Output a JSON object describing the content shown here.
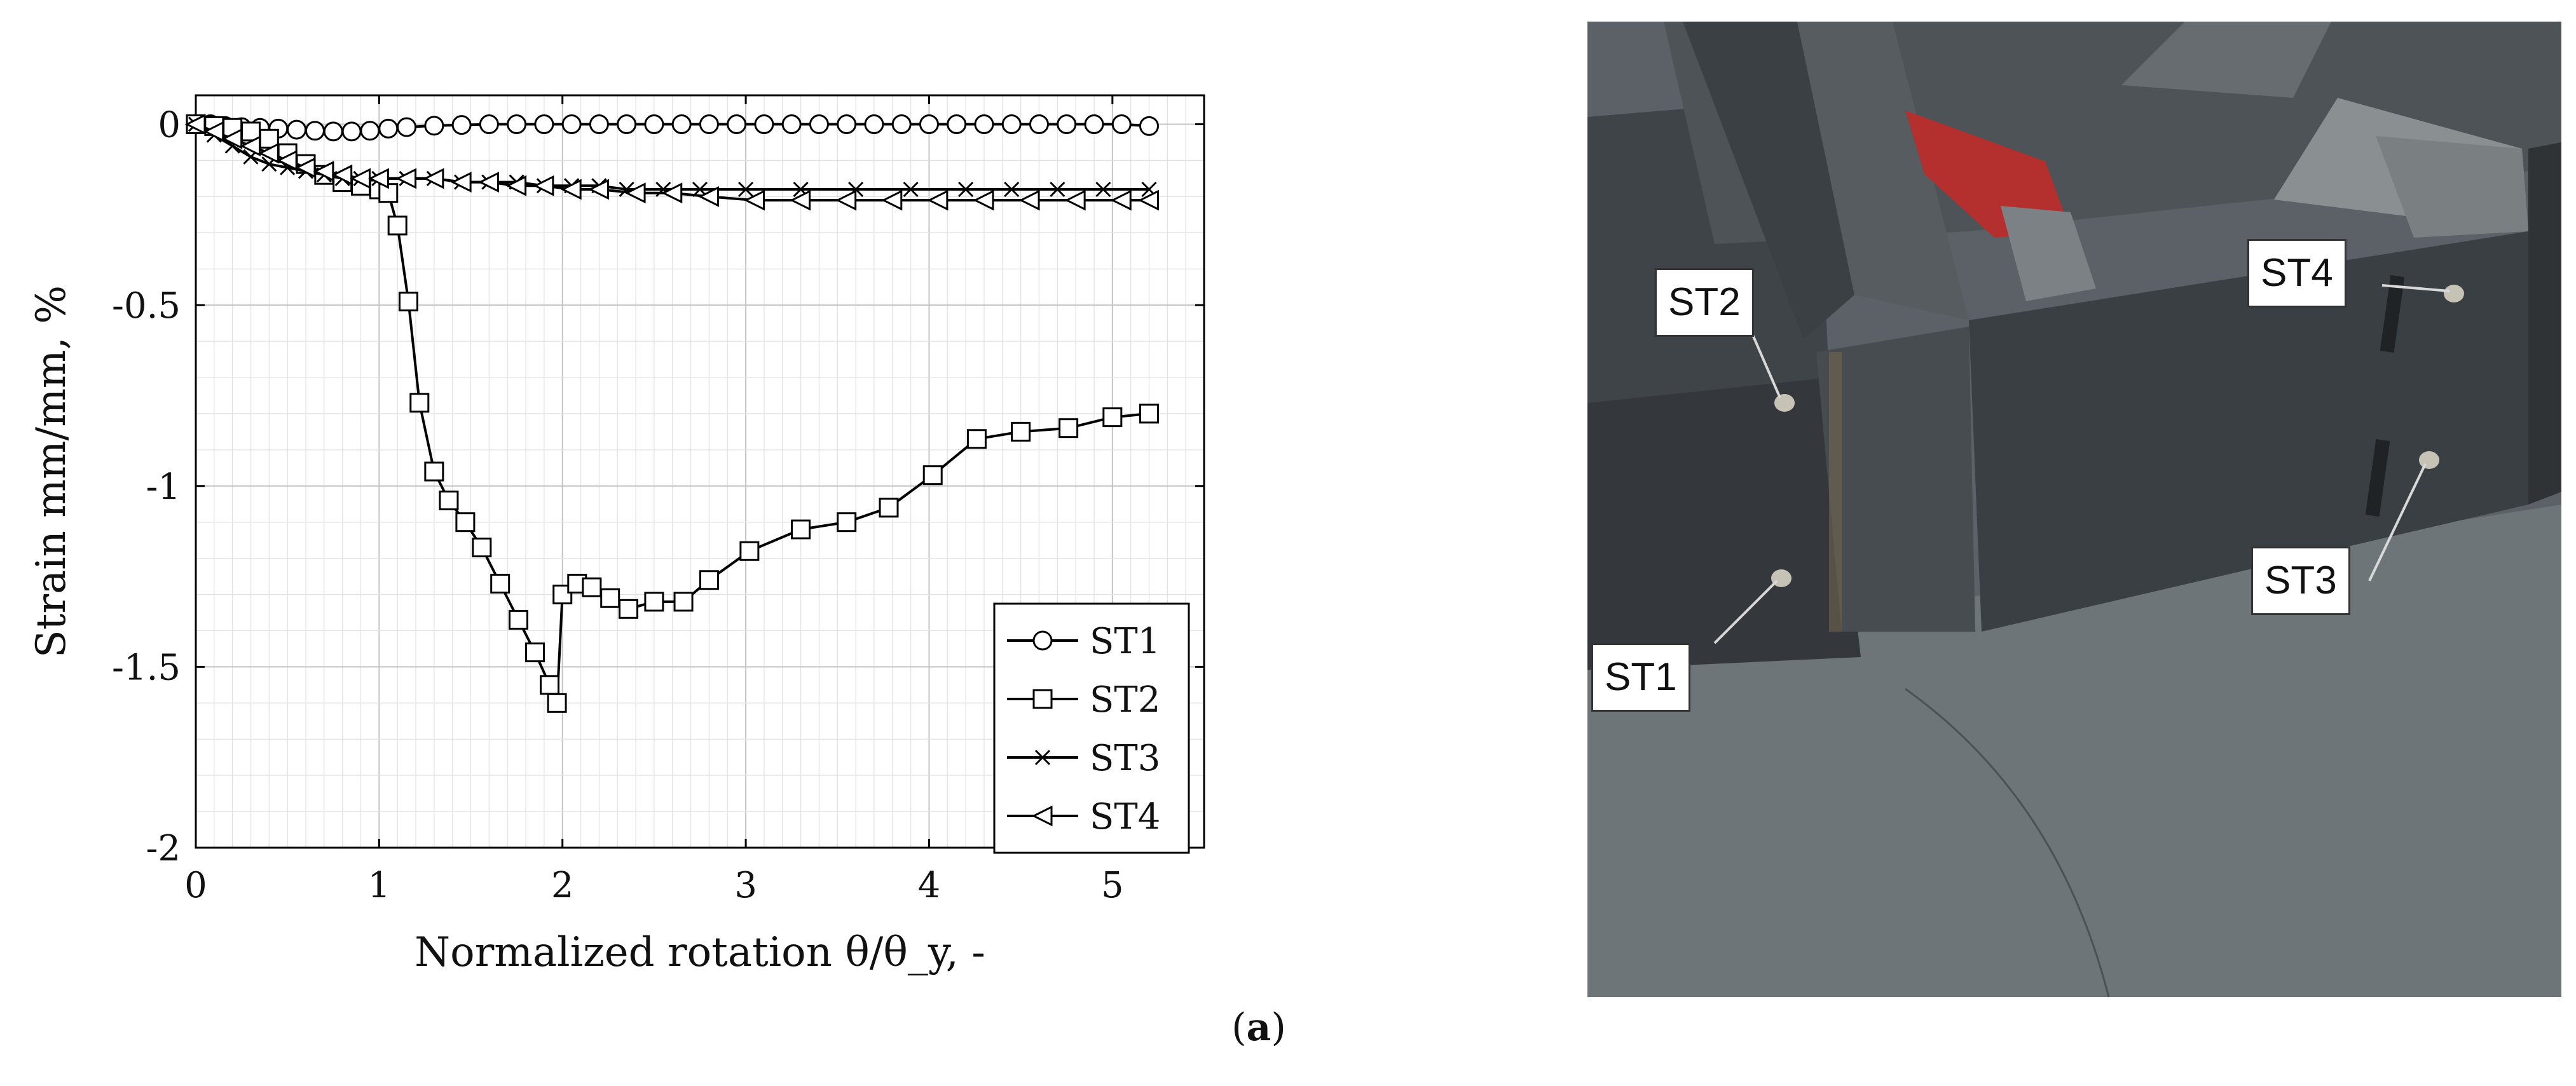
{
  "chart_data": {
    "type": "line",
    "xlabel": "Normalized rotation θ/θ_y, -",
    "ylabel": "Strain mm/mm, %",
    "xlim": [
      0,
      5.5
    ],
    "ylim": [
      -2,
      0.08
    ],
    "x_ticks": [
      "0",
      "1",
      "2",
      "3",
      "4",
      "5"
    ],
    "y_ticks": [
      "0",
      "-0.5",
      "-1",
      "-1.5",
      "-2"
    ],
    "grid": "major-and-minor",
    "legend_position": "bottom-right",
    "series": [
      {
        "name": "ST1",
        "marker": "circle",
        "points": [
          [
            0,
            0
          ],
          [
            0.08,
            0
          ],
          [
            0.16,
            -0.005
          ],
          [
            0.25,
            -0.008
          ],
          [
            0.35,
            -0.01
          ],
          [
            0.45,
            -0.012
          ],
          [
            0.55,
            -0.015
          ],
          [
            0.65,
            -0.018
          ],
          [
            0.75,
            -0.02
          ],
          [
            0.85,
            -0.02
          ],
          [
            0.95,
            -0.018
          ],
          [
            1.05,
            -0.012
          ],
          [
            1.15,
            -0.008
          ],
          [
            1.3,
            -0.004
          ],
          [
            1.45,
            -0.002
          ],
          [
            1.6,
            0
          ],
          [
            1.75,
            0
          ],
          [
            1.9,
            0
          ],
          [
            2.05,
            0
          ],
          [
            2.2,
            0
          ],
          [
            2.35,
            0
          ],
          [
            2.5,
            0
          ],
          [
            2.65,
            0
          ],
          [
            2.8,
            0
          ],
          [
            2.95,
            0
          ],
          [
            3.1,
            0
          ],
          [
            3.25,
            0
          ],
          [
            3.4,
            0
          ],
          [
            3.55,
            0
          ],
          [
            3.7,
            0
          ],
          [
            3.85,
            0
          ],
          [
            4.0,
            0
          ],
          [
            4.15,
            0
          ],
          [
            4.3,
            0
          ],
          [
            4.45,
            0
          ],
          [
            4.6,
            0
          ],
          [
            4.75,
            0
          ],
          [
            4.9,
            0
          ],
          [
            5.05,
            0
          ],
          [
            5.2,
            -0.005
          ]
        ]
      },
      {
        "name": "ST2",
        "marker": "square",
        "points": [
          [
            0,
            0
          ],
          [
            0.1,
            -0.005
          ],
          [
            0.2,
            -0.01
          ],
          [
            0.3,
            -0.02
          ],
          [
            0.4,
            -0.04
          ],
          [
            0.5,
            -0.08
          ],
          [
            0.6,
            -0.11
          ],
          [
            0.7,
            -0.14
          ],
          [
            0.8,
            -0.16
          ],
          [
            0.9,
            -0.17
          ],
          [
            1.0,
            -0.18
          ],
          [
            1.05,
            -0.19
          ],
          [
            1.1,
            -0.28
          ],
          [
            1.16,
            -0.49
          ],
          [
            1.22,
            -0.77
          ],
          [
            1.3,
            -0.96
          ],
          [
            1.38,
            -1.04
          ],
          [
            1.47,
            -1.1
          ],
          [
            1.56,
            -1.17
          ],
          [
            1.66,
            -1.27
          ],
          [
            1.76,
            -1.37
          ],
          [
            1.85,
            -1.46
          ],
          [
            1.93,
            -1.55
          ],
          [
            1.97,
            -1.6
          ],
          [
            2.0,
            -1.3
          ],
          [
            2.08,
            -1.27
          ],
          [
            2.16,
            -1.28
          ],
          [
            2.26,
            -1.31
          ],
          [
            2.36,
            -1.34
          ],
          [
            2.5,
            -1.32
          ],
          [
            2.66,
            -1.32
          ],
          [
            2.8,
            -1.26
          ],
          [
            3.02,
            -1.18
          ],
          [
            3.3,
            -1.12
          ],
          [
            3.55,
            -1.1
          ],
          [
            3.78,
            -1.06
          ],
          [
            4.02,
            -0.97
          ],
          [
            4.26,
            -0.87
          ],
          [
            4.5,
            -0.85
          ],
          [
            4.76,
            -0.84
          ],
          [
            5.0,
            -0.81
          ],
          [
            5.2,
            -0.8
          ]
        ]
      },
      {
        "name": "ST3",
        "marker": "x",
        "points": [
          [
            0,
            0
          ],
          [
            0.1,
            -0.03
          ],
          [
            0.2,
            -0.06
          ],
          [
            0.3,
            -0.09
          ],
          [
            0.4,
            -0.11
          ],
          [
            0.5,
            -0.12
          ],
          [
            0.6,
            -0.13
          ],
          [
            0.7,
            -0.14
          ],
          [
            0.8,
            -0.15
          ],
          [
            0.9,
            -0.15
          ],
          [
            1.0,
            -0.15
          ],
          [
            1.15,
            -0.15
          ],
          [
            1.3,
            -0.15
          ],
          [
            1.45,
            -0.16
          ],
          [
            1.6,
            -0.16
          ],
          [
            1.75,
            -0.16
          ],
          [
            1.9,
            -0.17
          ],
          [
            2.05,
            -0.17
          ],
          [
            2.2,
            -0.17
          ],
          [
            2.35,
            -0.18
          ],
          [
            2.55,
            -0.18
          ],
          [
            2.75,
            -0.18
          ],
          [
            3.0,
            -0.18
          ],
          [
            3.3,
            -0.18
          ],
          [
            3.6,
            -0.18
          ],
          [
            3.9,
            -0.18
          ],
          [
            4.2,
            -0.18
          ],
          [
            4.45,
            -0.18
          ],
          [
            4.7,
            -0.18
          ],
          [
            4.95,
            -0.18
          ],
          [
            5.2,
            -0.18
          ]
        ]
      },
      {
        "name": "ST4",
        "marker": "triangle-left",
        "points": [
          [
            0,
            0
          ],
          [
            0.1,
            -0.02
          ],
          [
            0.2,
            -0.04
          ],
          [
            0.3,
            -0.06
          ],
          [
            0.4,
            -0.08
          ],
          [
            0.5,
            -0.1
          ],
          [
            0.6,
            -0.12
          ],
          [
            0.7,
            -0.13
          ],
          [
            0.8,
            -0.14
          ],
          [
            0.9,
            -0.15
          ],
          [
            1.0,
            -0.15
          ],
          [
            1.15,
            -0.15
          ],
          [
            1.3,
            -0.15
          ],
          [
            1.45,
            -0.16
          ],
          [
            1.6,
            -0.16
          ],
          [
            1.75,
            -0.17
          ],
          [
            1.9,
            -0.17
          ],
          [
            2.05,
            -0.18
          ],
          [
            2.2,
            -0.18
          ],
          [
            2.4,
            -0.19
          ],
          [
            2.6,
            -0.19
          ],
          [
            2.8,
            -0.2
          ],
          [
            3.05,
            -0.21
          ],
          [
            3.3,
            -0.21
          ],
          [
            3.55,
            -0.21
          ],
          [
            3.8,
            -0.21
          ],
          [
            4.05,
            -0.21
          ],
          [
            4.3,
            -0.21
          ],
          [
            4.55,
            -0.21
          ],
          [
            4.8,
            -0.21
          ],
          [
            5.05,
            -0.21
          ],
          [
            5.2,
            -0.21
          ]
        ]
      }
    ]
  },
  "photo": {
    "labels": {
      "st1": "ST1",
      "st2": "ST2",
      "st3": "ST3",
      "st4": "ST4"
    }
  },
  "caption": {
    "open": "(",
    "letter": "a",
    "close": ")"
  }
}
